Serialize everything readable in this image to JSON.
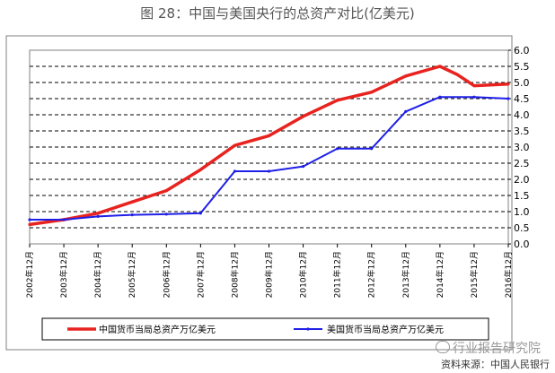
{
  "title": "图 28：中国与美国央行的总资产对比(亿美元)",
  "watermark": "行业报告研究院",
  "source": "资料来源：中国人民银行",
  "colors": {
    "china": "#e8231f",
    "us": "#1f1fe8",
    "grid": "#000000",
    "frame": "#808080"
  },
  "chart_data": {
    "type": "line",
    "title": "",
    "xlabel": "",
    "ylabel": "",
    "categories": [
      "2002年12月",
      "2003年12月",
      "2004年12月",
      "2005年12月",
      "2006年12月",
      "2007年12月",
      "2008年12月",
      "2009年12月",
      "2010年12月",
      "2011年12月",
      "2012年12月",
      "2013年12月",
      "2014年12月",
      "2015年12月",
      "2016年12月"
    ],
    "y_axis_position": "right",
    "ylim": [
      0,
      6
    ],
    "yticks": [
      "0.0",
      "0.5",
      "1.0",
      "1.5",
      "2.0",
      "2.5",
      "3.0",
      "3.5",
      "4.0",
      "4.5",
      "5.0",
      "5.5",
      "6.0"
    ],
    "grid": true,
    "legend_position": "bottom",
    "series": [
      {
        "name": "中国货币当局总资产万亿美元",
        "color": "#e8231f",
        "x": [
          0,
          1,
          2,
          3,
          4,
          5,
          6,
          7,
          8,
          9,
          10,
          11,
          12,
          12.5,
          13,
          14
        ],
        "values": [
          0.6,
          0.75,
          0.95,
          1.3,
          1.65,
          2.3,
          3.05,
          3.35,
          3.95,
          4.45,
          4.7,
          5.2,
          5.5,
          5.25,
          4.9,
          4.95
        ]
      },
      {
        "name": "美国货币当局总资产万亿美元",
        "color": "#1f1fe8",
        "x": [
          0,
          1,
          2,
          3,
          4,
          5,
          6,
          7,
          8,
          9,
          10,
          11,
          12,
          13,
          14
        ],
        "values": [
          0.75,
          0.75,
          0.85,
          0.9,
          0.92,
          0.95,
          2.25,
          2.25,
          2.4,
          2.95,
          2.95,
          4.1,
          4.55,
          4.55,
          4.5
        ]
      }
    ]
  }
}
